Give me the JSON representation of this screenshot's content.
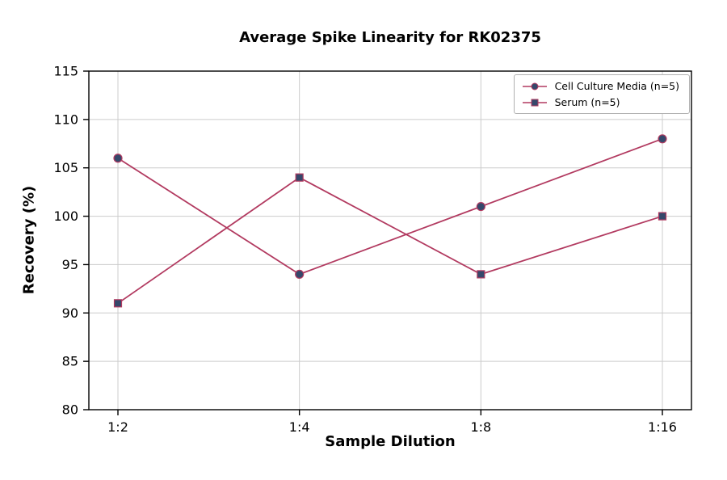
{
  "chart_data": {
    "type": "line",
    "title": "Average Spike Linearity for RK02375",
    "xlabel": "Sample Dilution",
    "ylabel": "Recovery (%)",
    "categories": [
      "1:2",
      "1:4",
      "1:8",
      "1:16"
    ],
    "ylim": [
      80,
      115
    ],
    "yticks": [
      80,
      85,
      90,
      95,
      100,
      105,
      110,
      115
    ],
    "grid": true,
    "legend_position": "upper right",
    "colors": {
      "line": "#b23a60",
      "marker": "#35486b",
      "grid": "#cccccc",
      "axis": "#000000"
    },
    "series": [
      {
        "name": "Cell Culture Media (n=5)",
        "marker": "circle",
        "values": [
          106,
          94,
          101,
          108
        ],
        "line_color": "#b23a60",
        "marker_color": "#35486b"
      },
      {
        "name": "Serum (n=5)",
        "marker": "square",
        "values": [
          91,
          104,
          94,
          100
        ],
        "line_color": "#b23a60",
        "marker_color": "#35486b"
      }
    ]
  }
}
